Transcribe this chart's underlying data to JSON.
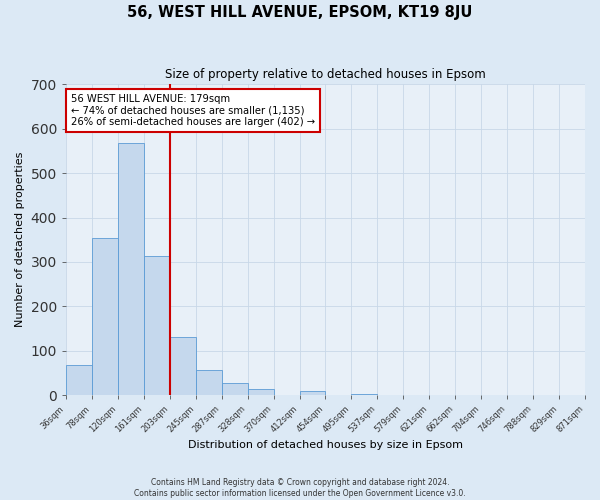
{
  "title": "56, WEST HILL AVENUE, EPSOM, KT19 8JU",
  "subtitle": "Size of property relative to detached houses in Epsom",
  "xlabel": "Distribution of detached houses by size in Epsom",
  "ylabel": "Number of detached properties",
  "bar_values": [
    68,
    355,
    568,
    313,
    130,
    57,
    27,
    14,
    0,
    10,
    0,
    3,
    0,
    0,
    0,
    0,
    0,
    0,
    0,
    0
  ],
  "bin_labels": [
    "36sqm",
    "78sqm",
    "120sqm",
    "161sqm",
    "203sqm",
    "245sqm",
    "287sqm",
    "328sqm",
    "370sqm",
    "412sqm",
    "454sqm",
    "495sqm",
    "537sqm",
    "579sqm",
    "621sqm",
    "662sqm",
    "704sqm",
    "746sqm",
    "788sqm",
    "829sqm",
    "871sqm"
  ],
  "bar_color": "#c5d8ed",
  "bar_edge_color": "#5b9bd5",
  "bar_width": 1.0,
  "vline_x": 3.5,
  "vline_color": "#cc0000",
  "annotation_title": "56 WEST HILL AVENUE: 179sqm",
  "annotation_line1": "← 74% of detached houses are smaller (1,135)",
  "annotation_line2": "26% of semi-detached houses are larger (402) →",
  "annotation_border_color": "#cc0000",
  "ylim": [
    0,
    700
  ],
  "yticks": [
    0,
    100,
    200,
    300,
    400,
    500,
    600,
    700
  ],
  "footer1": "Contains HM Land Registry data © Crown copyright and database right 2024.",
  "footer2": "Contains public sector information licensed under the Open Government Licence v3.0.",
  "grid_color": "#c8d8e8",
  "background_color": "#dce9f5",
  "plot_bg_color": "#e8f0f8",
  "num_bins": 20,
  "num_labels": 21
}
